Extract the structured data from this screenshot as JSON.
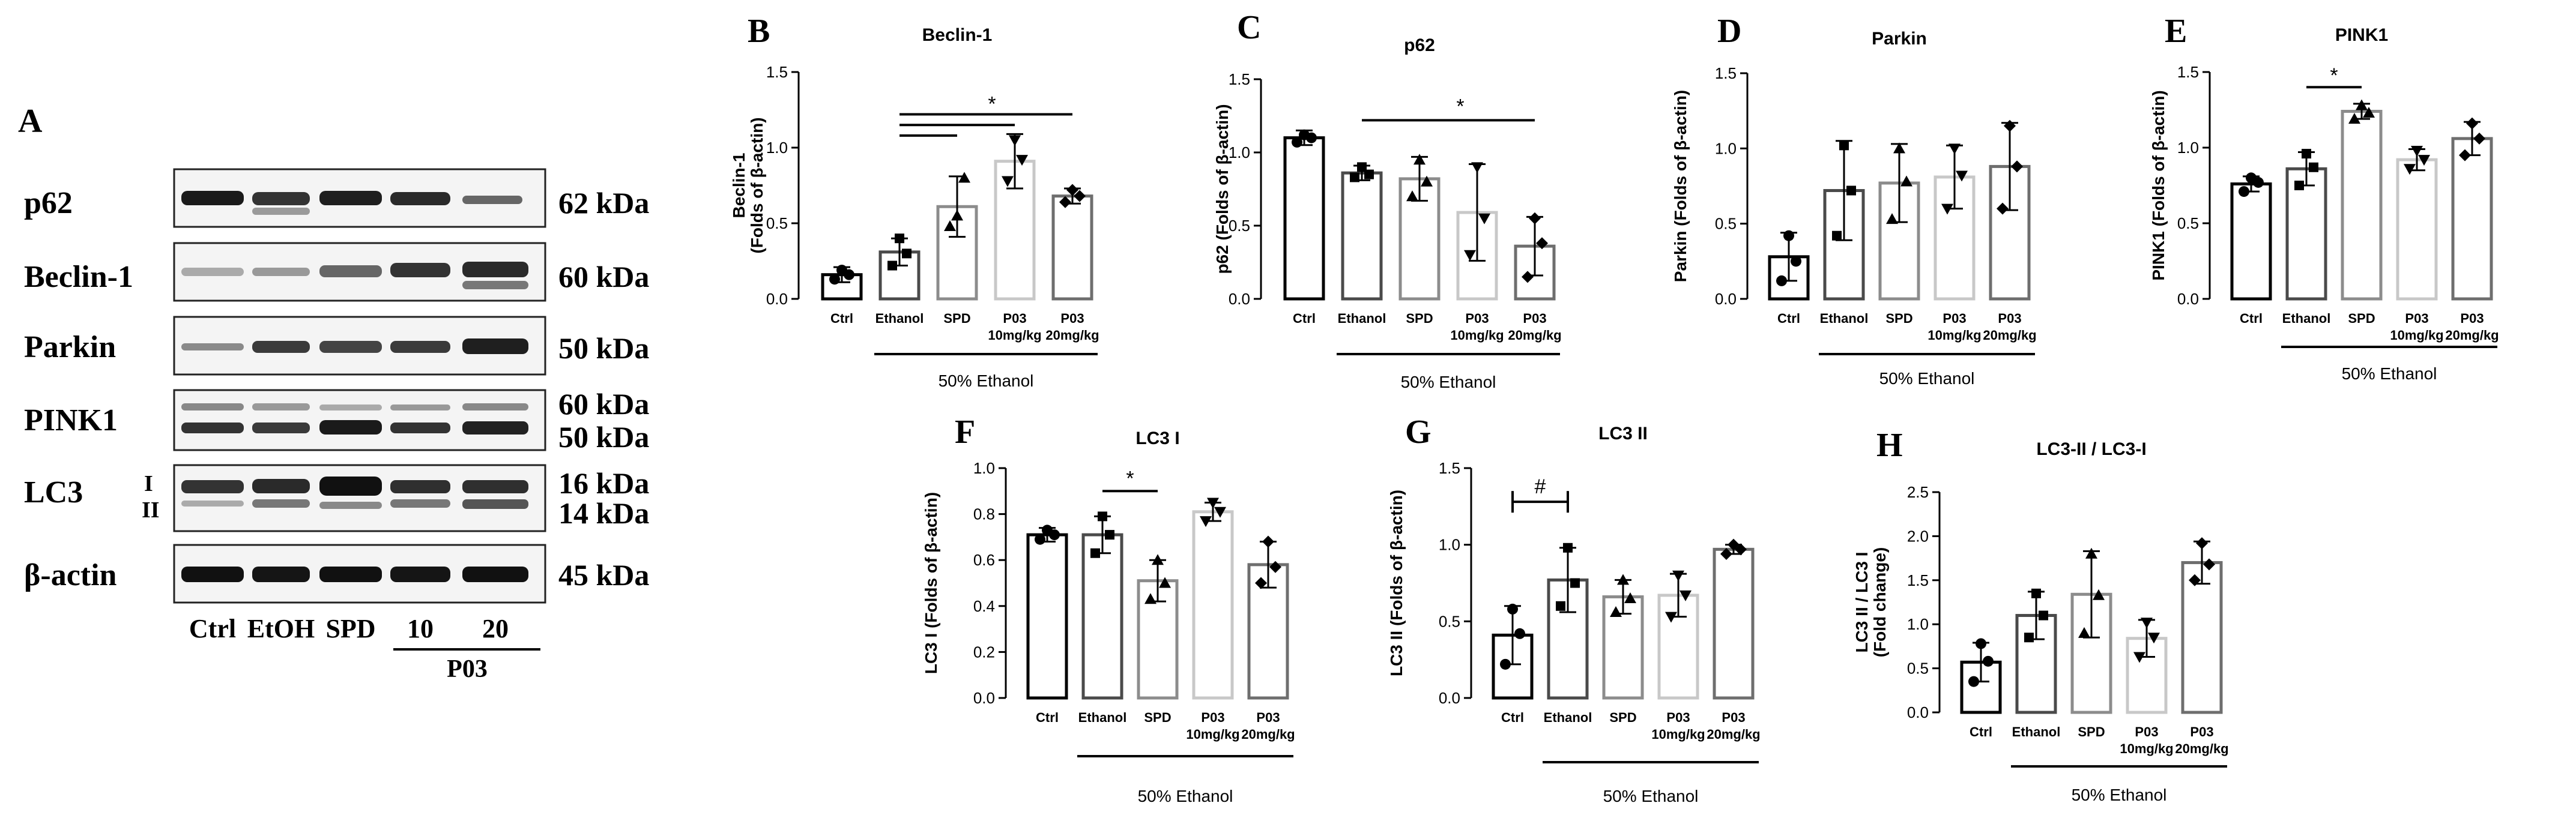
{
  "western_blot": {
    "panel_letter": "A",
    "rows": [
      {
        "protein": "p62",
        "size": "62 kDa"
      },
      {
        "protein": "Beclin-1",
        "size": "60 kDa"
      },
      {
        "protein": "Parkin",
        "size": "50 kDa"
      },
      {
        "protein": "PINK1",
        "size": "60 kDa",
        "size2": "50 kDa"
      },
      {
        "protein": "LC3",
        "sub1": "I",
        "sub2": "II",
        "size": "16 kDa",
        "size2": "14 kDa"
      },
      {
        "protein": "β-actin",
        "size": "45 kDa"
      }
    ],
    "lanes": [
      "Ctrl",
      "EtOH",
      "SPD",
      "10",
      "20"
    ],
    "group": "P03"
  },
  "chart_data": [
    {
      "letter": "B",
      "type": "bar",
      "title": "Beclin-1",
      "ylabel": "Beclin-1 (Folds of β-actin)",
      "ylabel_lines": [
        "Beclin-1",
        "(Folds of β-actin)"
      ],
      "ylim": [
        0,
        1.5
      ],
      "yticks": [
        "0.0",
        "0.5",
        "1.0",
        "1.5"
      ],
      "categories": [
        "Ctrl",
        "Ethanol",
        "SPD",
        "P03 10mg/kg",
        "P03 20mg/kg"
      ],
      "category_lines": [
        [
          "Ctrl"
        ],
        [
          "Ethanol"
        ],
        [
          "SPD"
        ],
        [
          "P03",
          "10mg/kg"
        ],
        [
          "P03",
          "20mg/kg"
        ]
      ],
      "values": [
        0.16,
        0.31,
        0.61,
        0.91,
        0.68
      ],
      "errors": [
        0.05,
        0.09,
        0.2,
        0.18,
        0.05
      ],
      "points": [
        [
          0.13,
          0.19,
          0.16
        ],
        [
          0.22,
          0.4,
          0.3
        ],
        [
          0.48,
          0.55,
          0.8
        ],
        [
          0.78,
          1.05,
          0.92
        ],
        [
          0.64,
          0.72,
          0.68
        ]
      ],
      "annotation": "*",
      "group_label": "50% Ethanol"
    },
    {
      "letter": "C",
      "type": "bar",
      "title": "p62",
      "ylabel": "p62 (Folds of β-actin)",
      "ylabel_lines": [
        "p62 (Folds of β-actin)"
      ],
      "ylim": [
        0,
        1.5
      ],
      "yticks": [
        "0.0",
        "0.5",
        "1.0",
        "1.5"
      ],
      "categories": [
        "Ctrl",
        "Ethanol",
        "SPD",
        "P03 10mg/kg",
        "P03 20mg/kg"
      ],
      "category_lines": [
        [
          "Ctrl"
        ],
        [
          "Ethanol"
        ],
        [
          "SPD"
        ],
        [
          "P03",
          "10mg/kg"
        ],
        [
          "P03",
          "20mg/kg"
        ]
      ],
      "values": [
        1.1,
        0.86,
        0.82,
        0.59,
        0.36
      ],
      "errors": [
        0.05,
        0.05,
        0.15,
        0.33,
        0.2
      ],
      "points": [
        [
          1.07,
          1.12,
          1.1
        ],
        [
          0.83,
          0.9,
          0.85
        ],
        [
          0.7,
          0.95,
          0.8
        ],
        [
          0.3,
          0.9,
          0.55
        ],
        [
          0.15,
          0.55,
          0.38
        ]
      ],
      "annotation": "*",
      "group_label": "50% Ethanol"
    },
    {
      "letter": "D",
      "type": "bar",
      "title": "Parkin",
      "ylabel": "Parkin (Folds of β-actin)",
      "ylabel_lines": [
        "Parkin (Folds of β-actin)"
      ],
      "ylim": [
        0,
        1.5
      ],
      "yticks": [
        "0.0",
        "0.5",
        "1.0",
        "1.5"
      ],
      "categories": [
        "Ctrl",
        "Ethanol",
        "SPD",
        "P03 10mg/kg",
        "P03 20mg/kg"
      ],
      "category_lines": [
        [
          "Ctrl"
        ],
        [
          "Ethanol"
        ],
        [
          "SPD"
        ],
        [
          "P03",
          "10mg/kg"
        ],
        [
          "P03",
          "20mg/kg"
        ]
      ],
      "values": [
        0.28,
        0.72,
        0.77,
        0.81,
        0.88
      ],
      "errors": [
        0.16,
        0.33,
        0.26,
        0.21,
        0.29
      ],
      "points": [
        [
          0.12,
          0.42,
          0.25
        ],
        [
          0.42,
          1.02,
          0.72
        ],
        [
          0.53,
          1.0,
          0.78
        ],
        [
          0.6,
          1.0,
          0.82
        ],
        [
          0.6,
          1.15,
          0.88
        ]
      ],
      "annotation": "",
      "group_label": "50% Ethanol"
    },
    {
      "letter": "E",
      "type": "bar",
      "title": "PINK1",
      "ylabel": "PINK1 (Folds of β-actin)",
      "ylabel_lines": [
        "PINK1 (Folds of β-actin)"
      ],
      "ylim": [
        0,
        1.5
      ],
      "yticks": [
        "0.0",
        "0.5",
        "1.0",
        "1.5"
      ],
      "categories": [
        "Ctrl",
        "Ethanol",
        "SPD",
        "P03 10mg/kg",
        "P03 20mg/kg"
      ],
      "category_lines": [
        [
          "Ctrl"
        ],
        [
          "Ethanol"
        ],
        [
          "SPD"
        ],
        [
          "P03",
          "10mg/kg"
        ],
        [
          "P03",
          "20mg/kg"
        ]
      ],
      "values": [
        0.76,
        0.86,
        1.24,
        0.92,
        1.06
      ],
      "errors": [
        0.05,
        0.11,
        0.05,
        0.07,
        0.11
      ],
      "points": [
        [
          0.71,
          0.8,
          0.77
        ],
        [
          0.75,
          0.96,
          0.87
        ],
        [
          1.19,
          1.28,
          1.23
        ],
        [
          0.86,
          0.98,
          0.92
        ],
        [
          0.95,
          1.16,
          1.06
        ]
      ],
      "annotation": "*",
      "group_label": "50% Ethanol"
    },
    {
      "letter": "F",
      "type": "bar",
      "title": "LC3 I",
      "ylabel": "LC3 I (Folds of β-actin)",
      "ylabel_lines": [
        "LC3 I (Folds of β-actin)"
      ],
      "ylim": [
        0,
        1.0
      ],
      "yticks": [
        "0.0",
        "0.2",
        "0.4",
        "0.6",
        "0.8",
        "1.0"
      ],
      "categories": [
        "Ctrl",
        "Ethanol",
        "SPD",
        "P03 10mg/kg",
        "P03 20mg/kg"
      ],
      "category_lines": [
        [
          "Ctrl"
        ],
        [
          "Ethanol"
        ],
        [
          "SPD"
        ],
        [
          "P03",
          "10mg/kg"
        ],
        [
          "P03",
          "20mg/kg"
        ]
      ],
      "values": [
        0.71,
        0.71,
        0.51,
        0.81,
        0.58
      ],
      "errors": [
        0.03,
        0.08,
        0.09,
        0.04,
        0.1
      ],
      "points": [
        [
          0.69,
          0.73,
          0.71
        ],
        [
          0.63,
          0.79,
          0.71
        ],
        [
          0.43,
          0.6,
          0.5
        ],
        [
          0.77,
          0.85,
          0.81
        ],
        [
          0.5,
          0.68,
          0.57
        ]
      ],
      "annotation": "*",
      "group_label": "50% Ethanol"
    },
    {
      "letter": "G",
      "type": "bar",
      "title": "LC3 II",
      "ylabel": "LC3 II (Folds of β-actin)",
      "ylabel_lines": [
        "LC3 II (Folds of β-actin)"
      ],
      "ylim": [
        0,
        1.5
      ],
      "yticks": [
        "0.0",
        "0.5",
        "1.0",
        "1.5"
      ],
      "categories": [
        "Ctrl",
        "Ethanol",
        "SPD",
        "P03 10mg/kg",
        "P03 20mg/kg"
      ],
      "category_lines": [
        [
          "Ctrl"
        ],
        [
          "Ethanol"
        ],
        [
          "SPD"
        ],
        [
          "P03",
          "10mg/kg"
        ],
        [
          "P03",
          "20mg/kg"
        ]
      ],
      "values": [
        0.41,
        0.77,
        0.66,
        0.67,
        0.97
      ],
      "errors": [
        0.19,
        0.21,
        0.11,
        0.14,
        0.03
      ],
      "points": [
        [
          0.22,
          0.58,
          0.42
        ],
        [
          0.6,
          0.98,
          0.75
        ],
        [
          0.56,
          0.77,
          0.65
        ],
        [
          0.53,
          0.8,
          0.67
        ],
        [
          0.94,
          1.0,
          0.97
        ]
      ],
      "annotation": "#",
      "group_label": "50% Ethanol"
    },
    {
      "letter": "H",
      "type": "bar",
      "title": "LC3-II / LC3-I",
      "ylabel": "LC3 II / LC3 I (Fold change)",
      "ylabel_lines": [
        "LC3 II / LC3 I",
        "(Fold change)"
      ],
      "ylim": [
        0,
        2.5
      ],
      "yticks": [
        "0.0",
        "0.5",
        "1.0",
        "1.5",
        "2.0",
        "2.5"
      ],
      "categories": [
        "Ctrl",
        "Ethanol",
        "SPD",
        "P03 10mg/kg",
        "P03 20mg/kg"
      ],
      "category_lines": [
        [
          "Ctrl"
        ],
        [
          "Ethanol"
        ],
        [
          "SPD"
        ],
        [
          "P03",
          "10mg/kg"
        ],
        [
          "P03",
          "20mg/kg"
        ]
      ],
      "values": [
        0.57,
        1.1,
        1.34,
        0.84,
        1.7
      ],
      "errors": [
        0.22,
        0.27,
        0.49,
        0.21,
        0.24
      ],
      "points": [
        [
          0.35,
          0.78,
          0.58
        ],
        [
          0.85,
          1.35,
          1.1
        ],
        [
          0.9,
          1.8,
          1.33
        ],
        [
          0.63,
          1.02,
          0.85
        ],
        [
          1.5,
          1.92,
          1.68
        ]
      ],
      "annotation": "",
      "group_label": "50% Ethanol"
    }
  ]
}
